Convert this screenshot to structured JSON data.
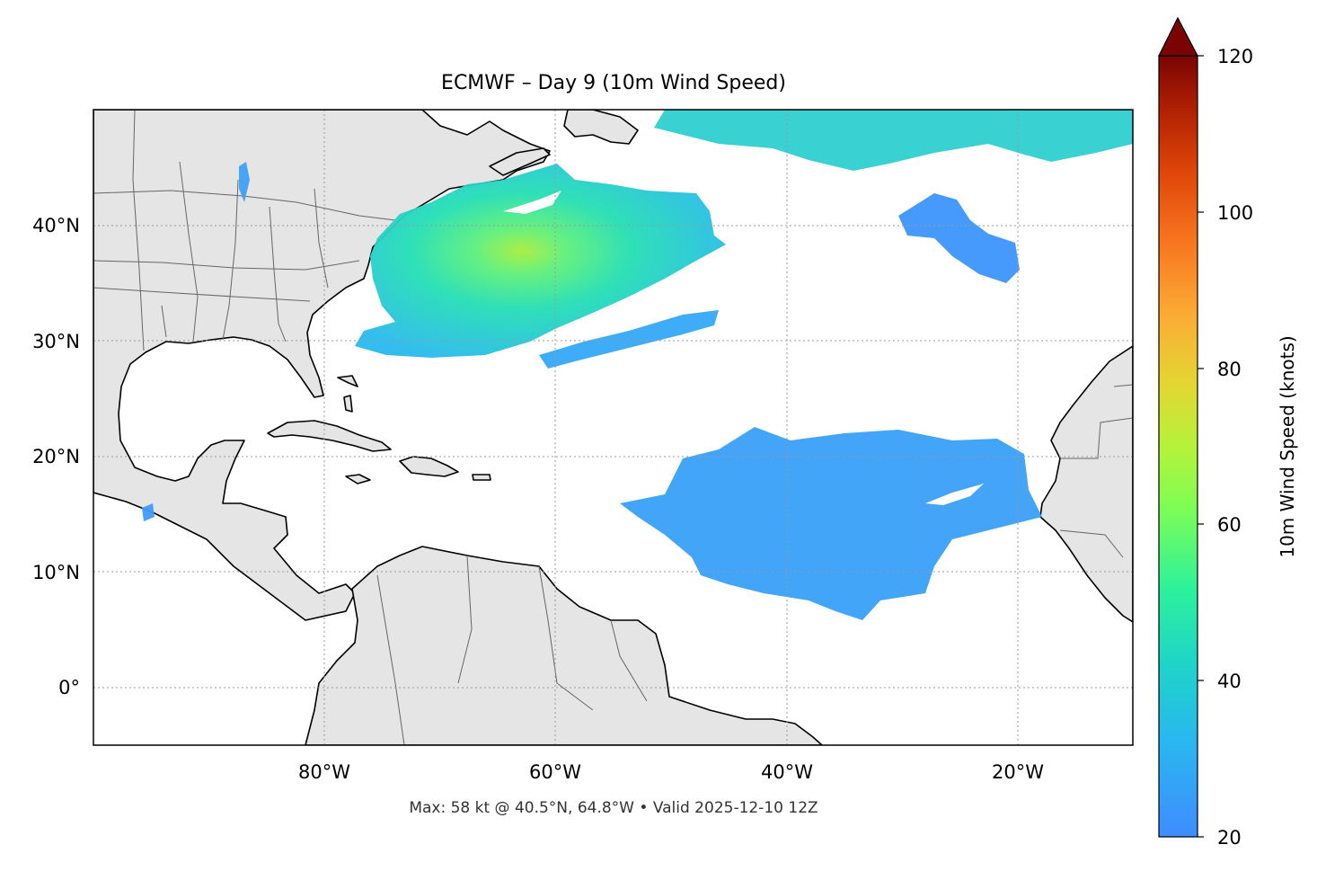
{
  "title": "ECMWF – Day 9 (10m Wind Speed)",
  "footer": "Max: 58 kt @ 40.5°N, 64.8°W • Valid 2025-12-10 12Z",
  "map": {
    "lon_range": [
      -100,
      -10
    ],
    "lat_range": [
      -5,
      50
    ],
    "gridlines": "dotted",
    "lon_ticks": [
      {
        "value": -80,
        "label": "80°W"
      },
      {
        "value": -60,
        "label": "60°W"
      },
      {
        "value": -40,
        "label": "40°W"
      },
      {
        "value": -20,
        "label": "20°W"
      }
    ],
    "lat_ticks": [
      {
        "value": 40,
        "label": "40°N"
      },
      {
        "value": 30,
        "label": "30°N"
      },
      {
        "value": 20,
        "label": "20°N"
      },
      {
        "value": 10,
        "label": "10°N"
      },
      {
        "value": 0,
        "label": "0°"
      }
    ],
    "land_color": "#e5e5e5",
    "coast_color": "#000000",
    "border_color": "#666666"
  },
  "colorbar": {
    "label": "10m Wind Speed (knots)",
    "min": 20,
    "max": 120,
    "extend": "max",
    "ticks": [
      20,
      40,
      60,
      80,
      100,
      120
    ],
    "colormap": "turbo"
  },
  "chart_data": {
    "type": "heatmap",
    "title": "ECMWF – Day 9 (10m Wind Speed)",
    "variable": "10m Wind Speed",
    "units": "knots",
    "max_value": 58,
    "max_location": {
      "lat": 40.5,
      "lon": -64.8
    },
    "valid_time": "2025-12-10 12Z",
    "wind_regions": [
      {
        "area": "off US East Coast / NW Atlantic",
        "typical_kt": 32,
        "peak_kt": 58
      },
      {
        "area": "far N Atlantic (≈47–50°N)",
        "typical_kt": 30
      },
      {
        "area": "subtropical band ≈29–31°N",
        "typical_kt": 26
      },
      {
        "area": "central Atlantic near 38–40°N, 35–20°W",
        "typical_kt": 24
      },
      {
        "area": "tropical Atlantic trade winds ≈11–22°N",
        "typical_kt": 25
      }
    ]
  }
}
